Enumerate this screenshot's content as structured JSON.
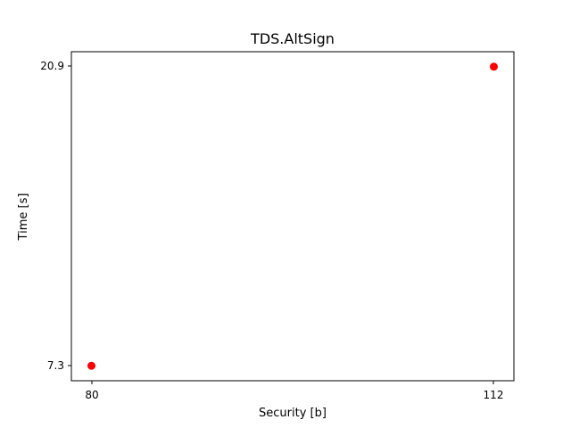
{
  "chart_data": {
    "type": "scatter",
    "title": "TDS.AltSign",
    "xlabel": "Security [b]",
    "ylabel": "Time [s]",
    "x_ticks": [
      "80",
      "112"
    ],
    "y_ticks": [
      "7.3",
      "20.9"
    ],
    "xlim": [
      78.4,
      113.6
    ],
    "ylim": [
      6.62,
      21.58
    ],
    "grid": false,
    "legend": "none",
    "marker_color": "#ff0000",
    "points": [
      {
        "x": 80,
        "y": 7.3
      },
      {
        "x": 112,
        "y": 20.9
      }
    ]
  }
}
